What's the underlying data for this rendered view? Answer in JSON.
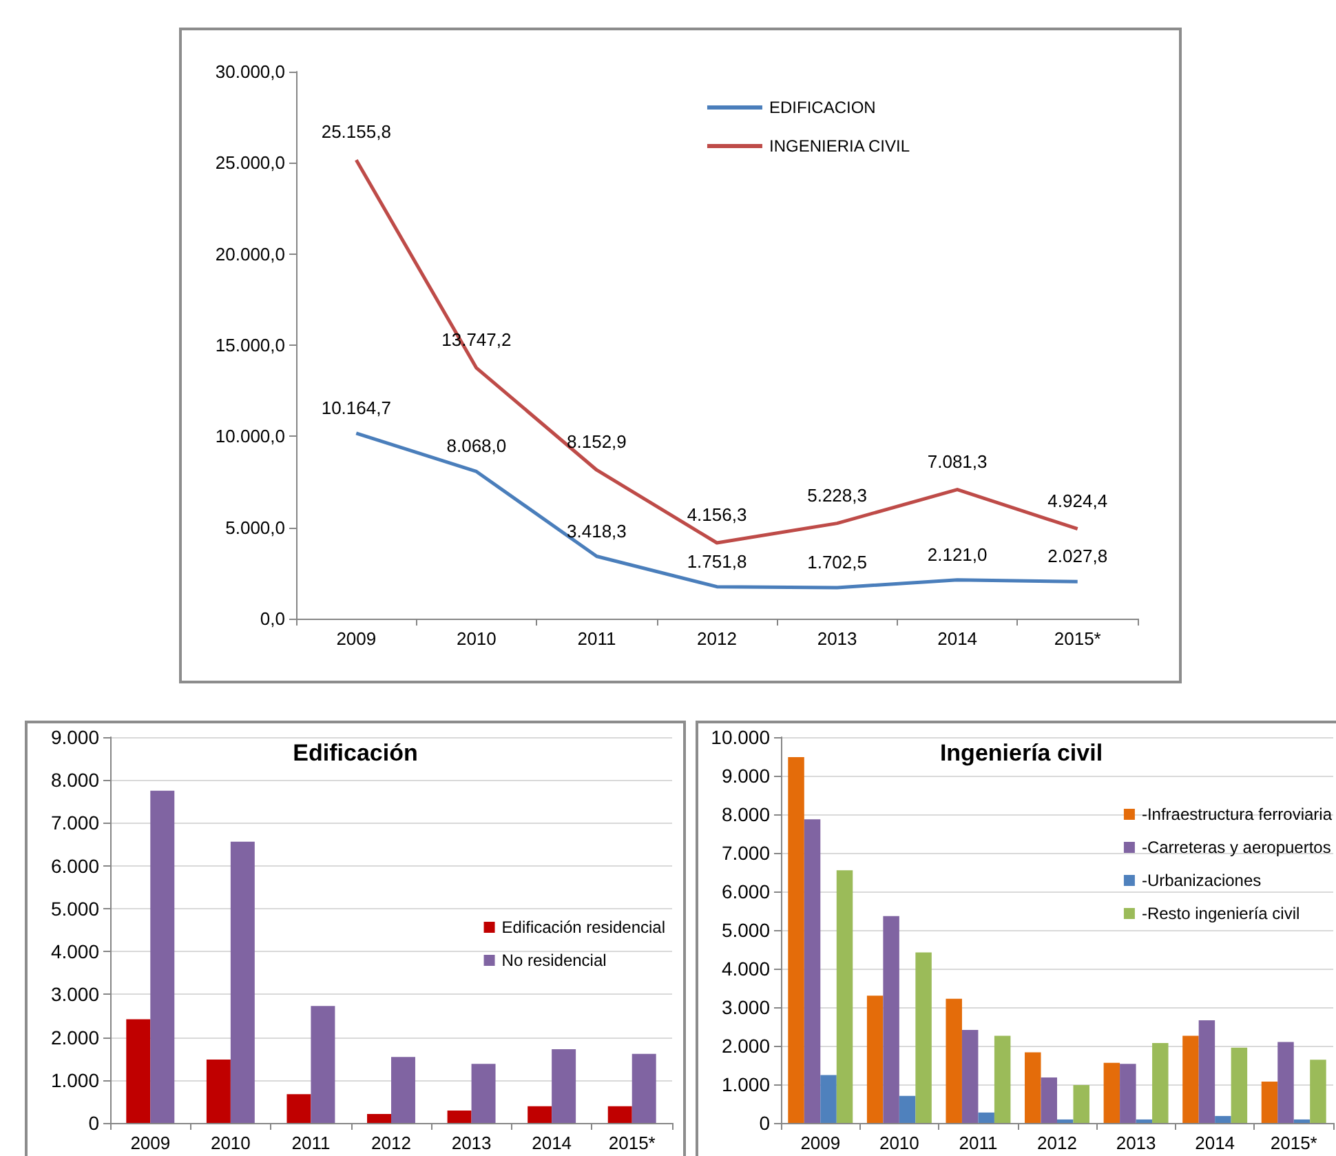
{
  "chart_data": [
    {
      "type": "line",
      "categories": [
        "2009",
        "2010",
        "2011",
        "2012",
        "2013",
        "2014",
        "2015*"
      ],
      "ylim": [
        0,
        30000
      ],
      "yticks": [
        {
          "value": 0,
          "label": "0,0"
        },
        {
          "value": 5000,
          "label": "5.000,0"
        },
        {
          "value": 10000,
          "label": "10.000,0"
        },
        {
          "value": 15000,
          "label": "15.000,0"
        },
        {
          "value": 20000,
          "label": "20.000,0"
        },
        {
          "value": 25000,
          "label": "25.000,0"
        },
        {
          "value": 30000,
          "label": "30.000,0"
        }
      ],
      "grid": false,
      "legend": "top",
      "marker": "none",
      "line_style": "solid",
      "series": [
        {
          "name": "EDIFICACION",
          "color": "#4a7ebb",
          "values": [
            10164.7,
            8068.0,
            3418.3,
            1751.8,
            1702.5,
            2121.0,
            2027.8
          ],
          "value_labels": [
            "10.164,7",
            "8.068,0",
            "3.418,3",
            "1.751,8",
            "1.702,5",
            "2.121,0",
            "2.027,8"
          ]
        },
        {
          "name": "INGENIERIA CIVIL",
          "color": "#be4b48",
          "values": [
            25155.8,
            13747.2,
            8152.9,
            4156.3,
            5228.3,
            7081.3,
            4924.4
          ],
          "value_labels": [
            "25.155,8",
            "13.747,2",
            "8.152,9",
            "4.156,3",
            "5.228,3",
            "7.081,3",
            "4.924,4"
          ]
        }
      ]
    },
    {
      "type": "bar",
      "title": "Edificación",
      "categories": [
        "2009",
        "2010",
        "2011",
        "2012",
        "2013",
        "2014",
        "2015*"
      ],
      "ylim": [
        0,
        9000
      ],
      "yticks": [
        0,
        {
          "value": 1000,
          "label": "1.000"
        },
        {
          "value": 2000,
          "label": "2.000"
        },
        {
          "value": 3000,
          "label": "3.000"
        },
        {
          "value": 4000,
          "label": "4.000"
        },
        {
          "value": 5000,
          "label": "5.000"
        },
        {
          "value": 6000,
          "label": "6.000"
        },
        {
          "value": 7000,
          "label": "7.000"
        },
        {
          "value": 8000,
          "label": "8.000"
        },
        {
          "value": 9000,
          "label": "9.000"
        }
      ],
      "grid": "y",
      "legend": "right",
      "series": [
        {
          "name": "Edificación residencial",
          "color": "#c00000",
          "values": [
            2420,
            1480,
            670,
            210,
            290,
            390,
            390
          ]
        },
        {
          "name": "No residencial",
          "color": "#8064a2",
          "values": [
            7750,
            6560,
            2730,
            1540,
            1380,
            1720,
            1610
          ]
        }
      ]
    },
    {
      "type": "bar",
      "title": "Ingeniería civil",
      "categories": [
        "2009",
        "2010",
        "2011",
        "2012",
        "2013",
        "2014",
        "2015*"
      ],
      "ylim": [
        0,
        10000
      ],
      "yticks": [
        0,
        {
          "value": 1000,
          "label": "1.000"
        },
        {
          "value": 2000,
          "label": "2.000"
        },
        {
          "value": 3000,
          "label": "3.000"
        },
        {
          "value": 4000,
          "label": "4.000"
        },
        {
          "value": 5000,
          "label": "5.000"
        },
        {
          "value": 6000,
          "label": "6.000"
        },
        {
          "value": 7000,
          "label": "7.000"
        },
        {
          "value": 8000,
          "label": "8.000"
        },
        {
          "value": 9000,
          "label": "9.000"
        },
        {
          "value": 10000,
          "label": "10.000"
        }
      ],
      "grid": "y",
      "legend": "top right",
      "series": [
        {
          "name": "-Infraestructura ferroviaria",
          "color": "#e46c0a",
          "values": [
            9480,
            3300,
            3220,
            1830,
            1560,
            2260,
            1070
          ]
        },
        {
          "name": "-Carreteras y aeropuertos",
          "color": "#8064a2",
          "values": [
            7870,
            5360,
            2410,
            1180,
            1530,
            2660,
            2100
          ]
        },
        {
          "name": "-Urbanizaciones",
          "color": "#4f81bd",
          "values": [
            1240,
            700,
            270,
            90,
            90,
            180,
            90
          ]
        },
        {
          "name": "-Resto ingeniería civil",
          "color": "#9bbb59",
          "values": [
            6550,
            4420,
            2260,
            980,
            2070,
            1950,
            1640
          ]
        }
      ]
    }
  ]
}
